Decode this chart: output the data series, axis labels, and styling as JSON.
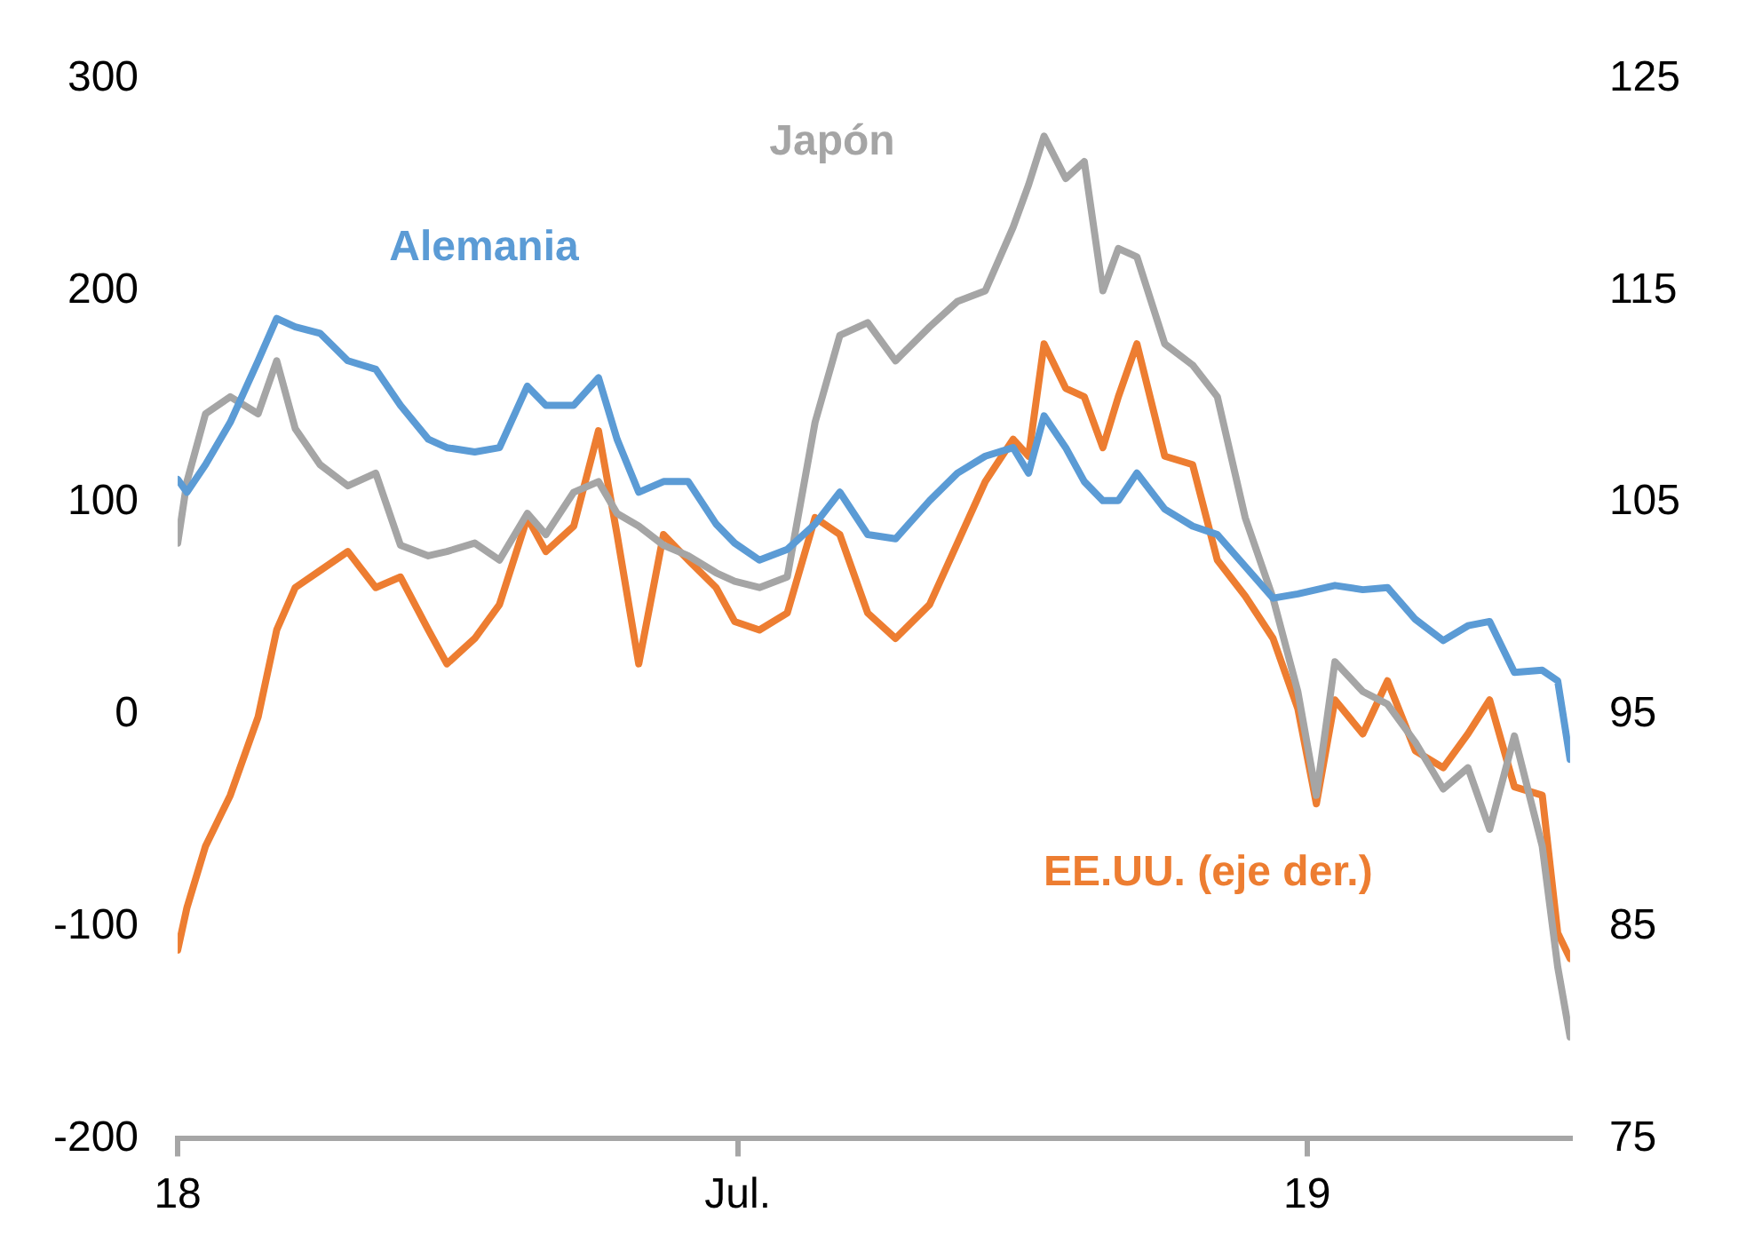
{
  "chart_data": {
    "type": "line",
    "x": [
      "2018-01-01",
      "2018-01-04",
      "2018-01-10",
      "2018-01-18",
      "2018-01-27",
      "2018-02-02",
      "2018-02-08",
      "2018-02-16",
      "2018-02-25",
      "2018-03-06",
      "2018-03-14",
      "2018-03-23",
      "2018-03-29",
      "2018-04-07",
      "2018-04-15",
      "2018-04-24",
      "2018-04-30",
      "2018-05-09",
      "2018-05-17",
      "2018-05-23",
      "2018-05-30",
      "2018-06-07",
      "2018-06-15",
      "2018-06-24",
      "2018-06-30",
      "2018-07-08",
      "2018-07-17",
      "2018-07-26",
      "2018-08-03",
      "2018-08-12",
      "2018-08-21",
      "2018-09-01",
      "2018-09-10",
      "2018-09-19",
      "2018-09-28",
      "2018-10-03",
      "2018-10-08",
      "2018-10-15",
      "2018-10-21",
      "2018-10-27",
      "2018-11-01",
      "2018-11-07",
      "2018-11-16",
      "2018-11-25",
      "2018-12-03",
      "2018-12-12",
      "2018-12-21",
      "2018-12-29",
      "2019-01-04",
      "2019-01-10",
      "2019-01-19",
      "2019-01-27",
      "2019-02-05",
      "2019-02-14",
      "2019-02-22",
      "2019-03-01",
      "2019-03-09",
      "2019-03-18",
      "2019-03-23",
      "2019-03-27"
    ],
    "series": [
      {
        "name": "Alemania",
        "color": "#5b9bd5",
        "values": [
          111,
          105,
          118,
          138,
          167,
          187,
          183,
          180,
          167,
          163,
          146,
          130,
          126,
          124,
          126,
          155,
          146,
          146,
          159,
          130,
          105,
          110,
          110,
          90,
          81,
          73,
          78,
          90,
          105,
          85,
          83,
          101,
          114,
          122,
          126,
          114,
          141,
          126,
          110,
          101,
          101,
          114,
          97,
          89,
          85,
          70,
          55,
          57,
          59,
          61,
          59,
          60,
          45,
          35,
          42,
          44,
          20,
          21,
          16,
          -21
        ]
      },
      {
        "name": "Japón",
        "color": "#a5a5a5",
        "values": [
          81,
          110,
          142,
          150,
          142,
          167,
          135,
          118,
          108,
          114,
          80,
          75,
          77,
          81,
          73,
          95,
          85,
          105,
          110,
          95,
          89,
          80,
          75,
          67,
          63,
          60,
          65,
          138,
          179,
          185,
          167,
          183,
          195,
          200,
          230,
          250,
          273,
          253,
          261,
          200,
          220,
          216,
          175,
          165,
          150,
          93,
          55,
          11,
          -38,
          25,
          11,
          5,
          -13,
          -35,
          -25,
          -54,
          -10,
          -62,
          -119,
          -152
        ]
      },
      {
        "name": "EE.UU. (eje der.)",
        "color": "#ed7d31",
        "axis": "y2",
        "values": [
          83.9,
          85.9,
          88.8,
          91.2,
          94.9,
          99.0,
          101.0,
          101.8,
          102.7,
          101.0,
          101.5,
          99.0,
          97.4,
          98.6,
          100.2,
          104.3,
          102.7,
          103.9,
          108.4,
          103.5,
          97.4,
          103.5,
          102.3,
          101.0,
          99.4,
          99.0,
          99.8,
          104.3,
          103.5,
          99.8,
          98.6,
          100.2,
          103.1,
          106.0,
          108.0,
          107.2,
          112.5,
          110.4,
          110.0,
          107.6,
          110.0,
          112.5,
          107.2,
          106.8,
          102.3,
          100.6,
          98.6,
          95.3,
          90.8,
          95.7,
          94.1,
          96.6,
          93.3,
          92.5,
          94.1,
          95.7,
          91.6,
          91.2,
          84.7,
          83.5
        ]
      }
    ],
    "xlim": [
      "2018-01-01",
      "2019-03-27"
    ],
    "xticks": [
      {
        "value": "2018-01-01",
        "label": "18"
      },
      {
        "value": "2018-07-01",
        "label": "Jul."
      },
      {
        "value": "2019-01-01",
        "label": "19"
      }
    ],
    "ylim": [
      -200,
      300
    ],
    "yticks": [
      -200,
      -100,
      0,
      100,
      200,
      300
    ],
    "y2lim": [
      75,
      125
    ],
    "y2ticks": [
      75,
      85,
      95,
      105,
      115,
      125
    ],
    "grid": false,
    "legend": false,
    "marker": "none",
    "line_style": "solid"
  }
}
